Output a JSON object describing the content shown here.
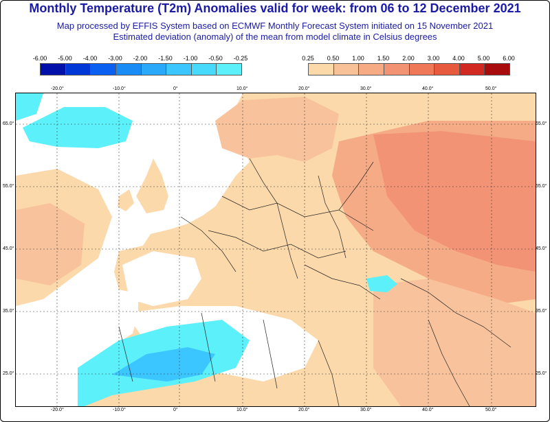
{
  "title": "Monthly Temperature (T2m) Anomalies valid for week: from 06 to 12 December 2021",
  "subtitle_1": "Map processed by EFFIS System based on ECMWF Monthly Forecast System initiated on 15 November 2021",
  "subtitle_2": "Estimated deviation (anomaly) of the mean from model climate in Celsius degrees",
  "legend_negative": {
    "labels": [
      "-6.00",
      "-5.00",
      "-4.00",
      "-3.00",
      "-2.00",
      "-1.50",
      "-1.00",
      "-0.50",
      "-0.25"
    ],
    "colors": [
      "#0010a8",
      "#0038d8",
      "#0a60f0",
      "#1a8cf5",
      "#2aa8fa",
      "#3cc6ff",
      "#48dafc",
      "#5cf0fa"
    ]
  },
  "legend_positive": {
    "labels": [
      "0.25",
      "0.50",
      "1.00",
      "1.50",
      "2.00",
      "3.00",
      "4.00",
      "5.00",
      "6.00"
    ],
    "colors": [
      "#fcd9a8",
      "#f9c198",
      "#f6ab84",
      "#f29374",
      "#ee7858",
      "#e85a3e",
      "#d22a22",
      "#a80c0c"
    ]
  },
  "map": {
    "lon_labels": [
      "-20.0°",
      "-10.0°",
      "0°",
      "10.0°",
      "20.0°",
      "30.0°",
      "40.0°",
      "50.0°"
    ],
    "lat_labels": [
      "65.0°",
      "55.0°",
      "45.0°",
      "35.0°",
      "25.0°"
    ],
    "colors": {
      "land_base": "#fbd9aa",
      "anomaly_1": "#f8c39c",
      "anomaly_2": "#f5ac86",
      "anomaly_3": "#f29375",
      "cold_1": "#5cf0fa",
      "cold_2": "#3cc6ff",
      "border": "#222222",
      "grid": "#333333"
    }
  }
}
